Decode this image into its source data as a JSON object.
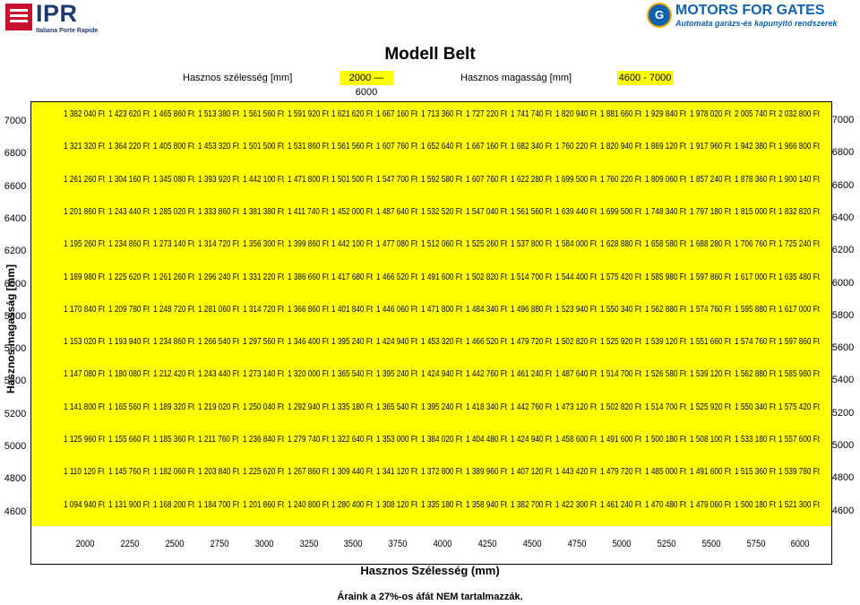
{
  "logos": {
    "left": {
      "brand": "IPR",
      "sub": "Italiana Porte Rapide"
    },
    "right": {
      "badge": "G",
      "brand": "MOTORS FOR GATES",
      "sub": "Automata garázs-és kapunyitó rendszerek"
    }
  },
  "title": "Modell Belt",
  "width_label": "Hasznos szélesség [mm]",
  "width_range": "2000 — 6000",
  "height_label": "Hasznos magasság [mm]",
  "height_range": "4600 - 7000",
  "y_axis_title": "Hasznos magasság [mm]",
  "x_axis_title": "Hasznos Szélesség (mm)",
  "footnote": "Áraink a 27%-os áfát NEM tartalmazzák.",
  "columns": [
    "2000",
    "2250",
    "2500",
    "2750",
    "3000",
    "3250",
    "3500",
    "3750",
    "4000",
    "4250",
    "4500",
    "4750",
    "5000",
    "5250",
    "5500",
    "5750",
    "6000"
  ],
  "rows": [
    {
      "height": "7000",
      "prices": [
        "1 382 040 Ft",
        "1 423 620 Ft",
        "1 465 860 Ft",
        "1 513 380 Ft",
        "1 561 560 Ft",
        "1 591 920 Ft",
        "1 621 620 Ft",
        "1 667 160 Ft",
        "1 713 360 Ft",
        "1 727 220 Ft",
        "1 741 740 Ft",
        "1 820 940 Ft",
        "1 881 660 Ft",
        "1 929 840 Ft",
        "1 978 020 Ft",
        "2 005 740 Ft",
        "2 032 800 Ft"
      ]
    },
    {
      "height": "6800",
      "prices": [
        "1 321 320 Ft",
        "1 364 220 Ft",
        "1 405 800 Ft",
        "1 453 320 Ft",
        "1 501 500 Ft",
        "1 531 860 Ft",
        "1 561 560 Ft",
        "1 607 760 Ft",
        "1 652 640 Ft",
        "1 667 160 Ft",
        "1 682 340 Ft",
        "1 760 220 Ft",
        "1 820 940 Ft",
        "1 869 120 Ft",
        "1 917 960 Ft",
        "1 942 380 Ft",
        "1 966 800 Ft"
      ]
    },
    {
      "height": "6600",
      "prices": [
        "1 261 260 Ft",
        "1 304 160 Ft",
        "1 345 080 Ft",
        "1 393 920 Ft",
        "1 442 100 Ft",
        "1 471 800 Ft",
        "1 501 500 Ft",
        "1 547 700 Ft",
        "1 592 580 Ft",
        "1 607 760 Ft",
        "1 622 280 Ft",
        "1 699 500 Ft",
        "1 760 220 Ft",
        "1 809 060 Ft",
        "1 857 240 Ft",
        "1 878 360 Ft",
        "1 900 140 Ft"
      ]
    },
    {
      "height": "6400",
      "prices": [
        "1 201 860 Ft",
        "1 243 440 Ft",
        "1 285 020 Ft",
        "1 333 860 Ft",
        "1 381 380 Ft",
        "1 411 740 Ft",
        "1 452 000 Ft",
        "1 487 640 Ft",
        "1 532 520 Ft",
        "1 547 040 Ft",
        "1 561 560 Ft",
        "1 639 440 Ft",
        "1 699 500 Ft",
        "1 748 340 Ft",
        "1 797 180 Ft",
        "1 815 000 Ft",
        "1 832 820 Ft"
      ]
    },
    {
      "height": "6200",
      "prices": [
        "1 195 260 Ft",
        "1 234 860 Ft",
        "1 273 140 Ft",
        "1 314 720 Ft",
        "1 356 300 Ft",
        "1 399 860 Ft",
        "1 442 100 Ft",
        "1 477 080 Ft",
        "1 512 060 Ft",
        "1 525 260 Ft",
        "1 537 800 Ft",
        "1 584 000 Ft",
        "1 628 880 Ft",
        "1 658 580 Ft",
        "1 688 280 Ft",
        "1 706 760 Ft",
        "1 725 240 Ft"
      ]
    },
    {
      "height": "6000",
      "prices": [
        "1 189 980 Ft",
        "1 225 620 Ft",
        "1 261 260 Ft",
        "1 296 240 Ft",
        "1 331 220 Ft",
        "1 386 660 Ft",
        "1 417 680 Ft",
        "1 466 520 Ft",
        "1 491 600 Ft",
        "1 502 820 Ft",
        "1 514 700 Ft",
        "1 544 400 Ft",
        "1 575 420 Ft",
        "1 585 980 Ft",
        "1 597 860 Ft",
        "1 617 000 Ft",
        "1 635 480 Ft"
      ]
    },
    {
      "height": "5800",
      "prices": [
        "1 170 840 Ft",
        "1 209 780 Ft",
        "1 248 720 Ft",
        "1 281 060 Ft",
        "1 314 720 Ft",
        "1 366 860 Ft",
        "1 401 840 Ft",
        "1 446 060 Ft",
        "1 471 800 Ft",
        "1 484 340 Ft",
        "1 496 880 Ft",
        "1 523 940 Ft",
        "1 550 340 Ft",
        "1 562 880 Ft",
        "1 574 760 Ft",
        "1 595 880 Ft",
        "1 617 000 Ft"
      ]
    },
    {
      "height": "5600",
      "prices": [
        "1 153 020 Ft",
        "1 193 940 Ft",
        "1 234 860 Ft",
        "1 266 540 Ft",
        "1 297 560 Ft",
        "1 346 400 Ft",
        "1 395 240 Ft",
        "1 424 940 Ft",
        "1 453 320 Ft",
        "1 466 520 Ft",
        "1 479 720 Ft",
        "1 502 820 Ft",
        "1 525 920 Ft",
        "1 539 120 Ft",
        "1 551 660 Ft",
        "1 574 760 Ft",
        "1 597 860 Ft"
      ]
    },
    {
      "height": "5400",
      "prices": [
        "1 147 080 Ft",
        "1 180 080 Ft",
        "1 212 420 Ft",
        "1 243 440 Ft",
        "1 273 140 Ft",
        "1 320 000 Ft",
        "1 365 540 Ft",
        "1 395 240 Ft",
        "1 424 940 Ft",
        "1 442 760 Ft",
        "1 461 240 Ft",
        "1 487 640 Ft",
        "1 514 700 Ft",
        "1 526 580 Ft",
        "1 539 120 Ft",
        "1 562 880 Ft",
        "1 585 980 Ft"
      ]
    },
    {
      "height": "5200",
      "prices": [
        "1 141 800 Ft",
        "1 165 560 Ft",
        "1 189 320 Ft",
        "1 219 020 Ft",
        "1 250 040 Ft",
        "1 292 940 Ft",
        "1 335 180 Ft",
        "1 365 540 Ft",
        "1 395 240 Ft",
        "1 418 340 Ft",
        "1 442 760 Ft",
        "1 473 120 Ft",
        "1 502 820 Ft",
        "1 514 700 Ft",
        "1 525 920 Ft",
        "1 550 340 Ft",
        "1 575 420 Ft"
      ]
    },
    {
      "height": "5000",
      "prices": [
        "1 125 960 Ft",
        "1 155 660 Ft",
        "1 185 360 Ft",
        "1 211 760 Ft",
        "1 236 840 Ft",
        "1 279 740 Ft",
        "1 322 640 Ft",
        "1 353 000 Ft",
        "1 384 020 Ft",
        "1 404 480 Ft",
        "1 424 940 Ft",
        "1 458 600 Ft",
        "1 491 600 Ft",
        "1 500 180 Ft",
        "1 508 100 Ft",
        "1 533 180 Ft",
        "1 557 600 Ft"
      ]
    },
    {
      "height": "4800",
      "prices": [
        "1 110 120 Ft",
        "1 145 760 Ft",
        "1 182 060 Ft",
        "1 203 840 Ft",
        "1 225 620 Ft",
        "1 267 860 Ft",
        "1 309 440 Ft",
        "1 341 120 Ft",
        "1 372 800 Ft",
        "1 389 960 Ft",
        "1 407 120 Ft",
        "1 443 420 Ft",
        "1 479 720 Ft",
        "1 485 000 Ft",
        "1 491 600 Ft",
        "1 515 360 Ft",
        "1 539 780 Ft"
      ]
    },
    {
      "height": "4600",
      "prices": [
        "1 094 940 Ft",
        "1 131 900 Ft",
        "1 168 200 Ft",
        "1 184 700 Ft",
        "1 201 860 Ft",
        "1 240 800 Ft",
        "1 280 400 Ft",
        "1 308 120 Ft",
        "1 335 180 Ft",
        "1 358 940 Ft",
        "1 382 700 Ft",
        "1 422 300 Ft",
        "1 461 240 Ft",
        "1 470 480 Ft",
        "1 479 060 Ft",
        "1 500 180 Ft",
        "1 521 300 Ft"
      ]
    }
  ]
}
